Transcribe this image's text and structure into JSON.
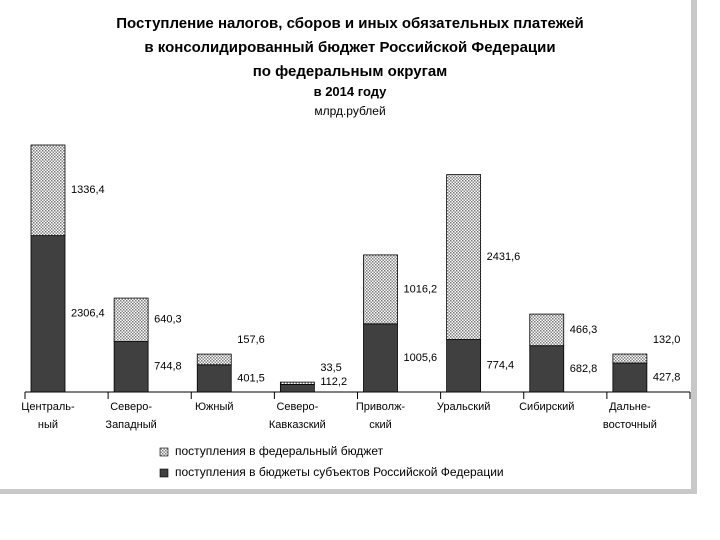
{
  "chart_data": {
    "type": "stacked-bar",
    "title": "Поступление налогов, сборов и иных обязательных платежей\nв консолидированный бюджет Российской Федерации\nпо федеральным округам",
    "subtitle": "в 2014 году",
    "unit": "млрд.рублей",
    "categories": [
      "Централь-\nный",
      "Северо-\nЗападный",
      "Южный",
      "Северо-\nКавказский",
      "Приволж-\nский",
      "Уральский",
      "Сибирский",
      "Дальне-\nвосточный"
    ],
    "series": [
      {
        "name": "поступления в бюджеты субъектов Российской Федерации",
        "color": "#404040",
        "values": [
          2306.4,
          744.8,
          401.5,
          112.2,
          1005.6,
          774.4,
          682.8,
          427.8
        ],
        "value_labels": [
          "2306,4",
          "744,8",
          "401,5",
          "112,2",
          "1005,6",
          "774,4",
          "682,8",
          "427,8"
        ]
      },
      {
        "name": "поступления в федеральный бюджет",
        "color": "#b0b0b0",
        "values": [
          1336.4,
          640.3,
          157.6,
          33.5,
          1016.2,
          2431.6,
          466.3,
          132.0
        ],
        "value_labels": [
          "1336,4",
          "640,3",
          "157,6",
          "33,5",
          "1016,2",
          "2431,6",
          "466,3",
          "132,0"
        ]
      }
    ]
  }
}
